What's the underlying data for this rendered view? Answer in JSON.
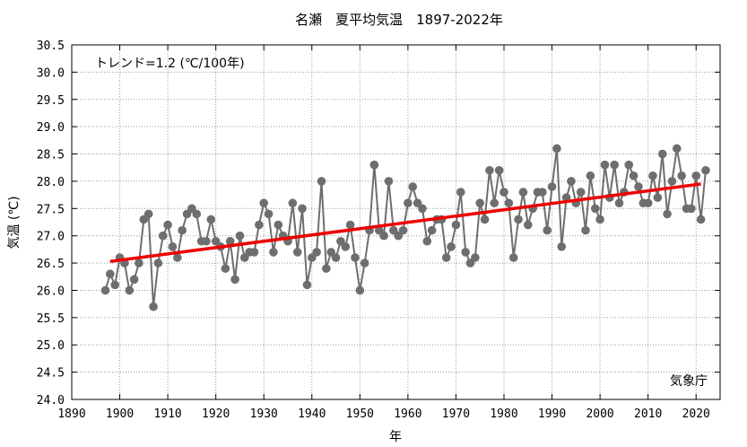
{
  "chart_data": {
    "type": "line",
    "title": "名瀬　夏平均気温　1897-2022年",
    "xlabel": "年",
    "ylabel": "気温 (℃)",
    "annotation": "トレンド=1.2 (℃/100年)",
    "credit": "気象庁",
    "xlim": [
      1890,
      2025
    ],
    "ylim": [
      24.0,
      30.5
    ],
    "x_ticks": [
      "1890",
      "1900",
      "1910",
      "1920",
      "1930",
      "1940",
      "1950",
      "1960",
      "1970",
      "1980",
      "1990",
      "2000",
      "2010",
      "2020"
    ],
    "y_ticks": [
      "24.0",
      "24.5",
      "25.0",
      "25.5",
      "26.0",
      "26.5",
      "27.0",
      "27.5",
      "28.0",
      "28.5",
      "29.0",
      "29.5",
      "30.0",
      "30.5"
    ],
    "grid": true,
    "colors": {
      "series": "#6e6e6e",
      "trend": "#ee0000",
      "grid": "#999999"
    },
    "series": [
      {
        "x": [
          1897,
          1898,
          1899,
          1900,
          1901,
          1902,
          1903,
          1904,
          1905,
          1906,
          1907,
          1908,
          1909,
          1910,
          1911,
          1912,
          1913,
          1914,
          1915,
          1916,
          1917,
          1918,
          1919,
          1920,
          1921,
          1922,
          1923,
          1924,
          1925,
          1926,
          1927,
          1928,
          1929,
          1930,
          1931,
          1932,
          1933,
          1934,
          1935,
          1936,
          1937,
          1938,
          1939,
          1940,
          1941,
          1942,
          1943,
          1944,
          1945,
          1946,
          1947,
          1948,
          1949,
          1950,
          1951,
          1952,
          1953,
          1954,
          1955,
          1956,
          1957,
          1958,
          1959,
          1960,
          1961,
          1962,
          1963,
          1964,
          1965,
          1966,
          1967,
          1968,
          1969,
          1970,
          1971,
          1972,
          1973,
          1974,
          1975,
          1976,
          1977,
          1978,
          1979,
          1980,
          1981,
          1982,
          1983,
          1984,
          1985,
          1986,
          1987,
          1988,
          1989,
          1990,
          1991,
          1992,
          1993,
          1994,
          1995,
          1996,
          1997,
          1998,
          1999,
          2000,
          2001,
          2002,
          2003,
          2004,
          2005,
          2006,
          2007,
          2008,
          2009,
          2010,
          2011,
          2012,
          2013,
          2014,
          2015,
          2016,
          2017,
          2018,
          2019,
          2020,
          2021,
          2022
        ],
        "values": [
          26.0,
          26.3,
          26.1,
          26.6,
          26.5,
          26.0,
          26.2,
          26.5,
          27.3,
          27.4,
          25.7,
          26.5,
          27.0,
          27.2,
          26.8,
          26.6,
          27.1,
          27.4,
          27.5,
          27.4,
          26.9,
          26.9,
          27.3,
          26.9,
          26.8,
          26.4,
          26.9,
          26.2,
          27.0,
          26.6,
          26.7,
          26.7,
          27.2,
          27.6,
          27.4,
          26.7,
          27.2,
          27.0,
          26.9,
          27.6,
          26.7,
          27.5,
          26.1,
          26.6,
          26.7,
          28.0,
          26.4,
          26.7,
          26.6,
          26.9,
          26.8,
          27.2,
          26.6,
          26.0,
          26.5,
          27.1,
          28.3,
          27.1,
          27.0,
          28.0,
          27.1,
          27.0,
          27.1,
          27.6,
          27.9,
          27.6,
          27.5,
          26.9,
          27.1,
          27.3,
          27.3,
          26.6,
          26.8,
          27.2,
          27.8,
          26.7,
          26.5,
          26.6,
          27.6,
          27.3,
          28.2,
          27.6,
          28.2,
          27.8,
          27.6,
          26.6,
          27.3,
          27.8,
          27.2,
          27.5,
          27.8,
          27.8,
          27.1,
          27.9,
          28.6,
          26.8,
          27.7,
          28.0,
          27.6,
          27.8,
          27.1,
          28.1,
          27.5,
          27.3,
          28.3,
          27.7,
          28.3,
          27.6,
          27.8,
          28.3,
          28.1,
          27.9,
          27.6,
          27.6,
          28.1,
          27.7,
          28.5,
          27.4,
          28.0,
          28.6,
          28.1,
          27.5,
          27.5,
          28.1,
          27.3,
          28.2
        ]
      }
    ],
    "trend": {
      "x": [
        1898,
        2021
      ],
      "y": [
        26.53,
        27.95
      ]
    }
  }
}
